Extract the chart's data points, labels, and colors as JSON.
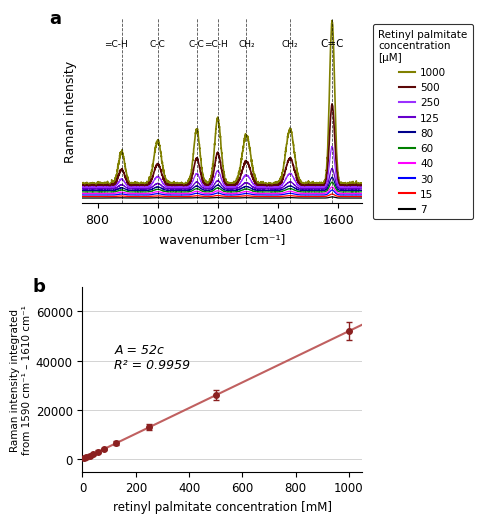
{
  "panel_a": {
    "title": "a",
    "xlabel": "wavenumber [cm⁻¹]",
    "ylabel": "Raman intensity",
    "xlim": [
      750,
      1680
    ],
    "xticks": [
      800,
      1000,
      1200,
      1400,
      1600
    ],
    "peak_positions": {
      "=C-H": 880,
      "C-C": 1000,
      "C-C2": 1130,
      "=C-H2": 1200,
      "CH2_1": 1295,
      "CH2_2": 1440,
      "C=C": 1580
    },
    "concentrations": [
      1000,
      500,
      250,
      125,
      80,
      60,
      40,
      30,
      15,
      7
    ],
    "colors": [
      "#808000",
      "#5C0808",
      "#9B30FF",
      "#6600CC",
      "#00008B",
      "#008000",
      "#FF00FF",
      "#0000FF",
      "#FF0000",
      "#000000"
    ],
    "legend_title": "Retinyl palmitate\nconcentration\n[μM]"
  },
  "panel_b": {
    "title": "b",
    "xlabel": "retinyl palmitate concentration [mM]",
    "ylabel": "Raman intensity integrated\nfrom 1590 cm⁻¹ – 1610 cm⁻¹",
    "xlim": [
      0,
      1050
    ],
    "ylim": [
      -5000,
      70000
    ],
    "xticks": [
      0,
      200,
      400,
      600,
      800,
      1000
    ],
    "yticks": [
      0,
      20000,
      40000,
      60000
    ],
    "data_x": [
      7,
      15,
      30,
      40,
      60,
      80,
      125,
      250,
      500,
      1000
    ],
    "data_y": [
      364,
      780,
      1560,
      2080,
      3120,
      4160,
      6500,
      13000,
      26000,
      52000
    ],
    "data_yerr": [
      500,
      500,
      500,
      500,
      500,
      500,
      800,
      1200,
      2000,
      3500
    ],
    "fit_slope": 52,
    "r_squared": "0.9959",
    "annotation": "A = 52c\nR² = 0.9959",
    "dot_color": "#8B2020",
    "line_color": "#C06060"
  }
}
